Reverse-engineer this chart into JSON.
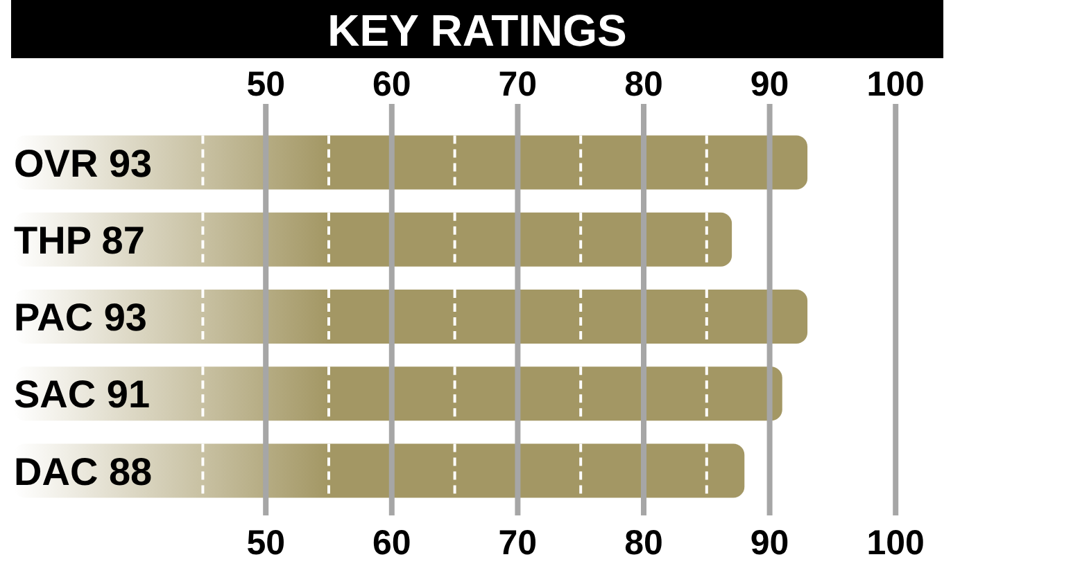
{
  "chart_data": {
    "type": "bar",
    "orientation": "horizontal",
    "title": "KEY RATINGS",
    "categories": [
      "OVR 93",
      "THP 87",
      "PAC 93",
      "SAC 91",
      "DAC 88"
    ],
    "values": [
      93,
      87,
      93,
      91,
      88
    ],
    "color": "#a39764",
    "xlim": [
      30,
      100
    ],
    "xticks": [
      50,
      60,
      70,
      80,
      90,
      100
    ],
    "x2lim": [
      30,
      100
    ],
    "x2ticks": [
      50,
      60,
      70,
      80,
      90,
      100
    ],
    "grid": "x",
    "ref_lines": [
      {
        "axis": "x",
        "value": 45,
        "color": "#ffffff",
        "line_style": "dashed"
      },
      {
        "axis": "x",
        "value": 55,
        "color": "#ffffff",
        "line_style": "dashed"
      },
      {
        "axis": "x",
        "value": 65,
        "color": "#ffffff",
        "line_style": "dashed"
      },
      {
        "axis": "x",
        "value": 75,
        "color": "#ffffff",
        "line_style": "dashed"
      },
      {
        "axis": "x",
        "value": 85,
        "color": "#ffffff",
        "line_style": "dashed"
      }
    ]
  }
}
